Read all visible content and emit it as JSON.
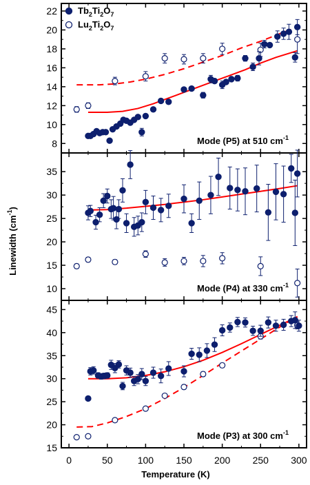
{
  "chart_data": {
    "type": "scatter",
    "x_label": "Temperature (K)",
    "y_label": "Linewidth (cm",
    "y_label_sup": "-1",
    "y_label_end": ")",
    "xlim": [
      -10,
      310
    ],
    "x_ticks": [
      0,
      50,
      100,
      150,
      200,
      250,
      300
    ],
    "grid": false,
    "legend": {
      "placement": "top-left",
      "entries": [
        {
          "name": "Tb",
          "sub1": "2",
          "mid": "Ti",
          "sub2": "2",
          "end": "O",
          "sub3": "7",
          "marker": "filled-circle"
        },
        {
          "name": "Lu",
          "sub1": "2",
          "mid": "Ti",
          "sub2": "2",
          "end": "O",
          "sub3": "7",
          "marker": "open-circle"
        }
      ]
    },
    "colors": {
      "tb": "#0d1f6e",
      "lu": "#0d1f6e",
      "fit": "#ff0000"
    },
    "panels": [
      {
        "id": "p5",
        "annotation": "Mode (P5) at 510 cm",
        "annotation_sup": "-1",
        "ylim": [
          7,
          22.8
        ],
        "y_ticks": [
          8,
          10,
          12,
          14,
          16,
          18,
          20,
          22
        ],
        "tb": [
          [
            25,
            8.8
          ],
          [
            28,
            8.8
          ],
          [
            32,
            9.0
          ],
          [
            36,
            9.3
          ],
          [
            40,
            9.1
          ],
          [
            44,
            9.2
          ],
          [
            48,
            9.2
          ],
          [
            53,
            8.3
          ],
          [
            57,
            9.5
          ],
          [
            62,
            9.8
          ],
          [
            67,
            10.1
          ],
          [
            71,
            10.5
          ],
          [
            75,
            10.4
          ],
          [
            80,
            10.2
          ],
          [
            85,
            10.5
          ],
          [
            90,
            10.8
          ],
          [
            95,
            9.2
          ],
          [
            100,
            10.9
          ],
          [
            110,
            11.6
          ],
          [
            120,
            12.5
          ],
          [
            130,
            12.4
          ],
          [
            150,
            13.7
          ],
          [
            160,
            13.8
          ],
          [
            175,
            13.1
          ],
          [
            185,
            14.8
          ],
          [
            190,
            14.6
          ],
          [
            200,
            14.2
          ],
          [
            205,
            14.5
          ],
          [
            212,
            14.8
          ],
          [
            220,
            14.9
          ],
          [
            230,
            17.0
          ],
          [
            240,
            16.1
          ],
          [
            248,
            17.0
          ],
          [
            255,
            18.5
          ],
          [
            262,
            18.4
          ],
          [
            272,
            19.3
          ],
          [
            280,
            19.6
          ],
          [
            287,
            19.8
          ],
          [
            295,
            17.1
          ],
          [
            298,
            20.3
          ]
        ],
        "tb_err": [
          [
            0
          ],
          [
            0
          ],
          [
            0
          ],
          [
            0
          ],
          [
            0
          ],
          [
            0
          ],
          [
            0
          ],
          [
            0
          ],
          [
            0
          ],
          [
            0
          ],
          [
            0
          ],
          [
            0
          ],
          [
            0
          ],
          [
            0
          ],
          [
            0
          ],
          [
            0
          ],
          [
            0.4
          ],
          [
            0
          ],
          [
            0
          ],
          [
            0.2
          ],
          [
            0
          ],
          [
            0
          ],
          [
            0
          ],
          [
            0.3
          ],
          [
            0.4
          ],
          [
            0
          ],
          [
            0.4
          ],
          [
            0
          ],
          [
            0
          ],
          [
            0.3
          ],
          [
            0.3
          ],
          [
            0.4
          ],
          [
            0.7
          ],
          [
            0.4
          ],
          [
            0
          ],
          [
            0.6
          ],
          [
            0.6
          ],
          [
            0.8
          ],
          [
            0.5
          ],
          [
            0.8
          ]
        ],
        "lu": [
          [
            10,
            11.6
          ],
          [
            25,
            12.0
          ],
          [
            60,
            14.6
          ],
          [
            100,
            15.1
          ],
          [
            125,
            17.0
          ],
          [
            150,
            16.9
          ],
          [
            175,
            17.0
          ],
          [
            200,
            18.0
          ],
          [
            250,
            17.9
          ],
          [
            298,
            19.0
          ]
        ],
        "lu_err": [
          0.3,
          0.3,
          0.4,
          0.5,
          0.5,
          0.5,
          0.5,
          0.6,
          0.7,
          1.5
        ],
        "fit_solid": [
          [
            25,
            11.3
          ],
          [
            50,
            11.3
          ],
          [
            70,
            11.4
          ],
          [
            90,
            11.7
          ],
          [
            110,
            12.2
          ],
          [
            130,
            12.8
          ],
          [
            150,
            13.4
          ],
          [
            170,
            14.0
          ],
          [
            190,
            14.6
          ],
          [
            210,
            15.2
          ],
          [
            230,
            15.8
          ],
          [
            250,
            16.5
          ],
          [
            270,
            17.1
          ],
          [
            298,
            17.8
          ]
        ],
        "fit_dashed": [
          [
            10,
            14.2
          ],
          [
            40,
            14.2
          ],
          [
            60,
            14.3
          ],
          [
            80,
            14.5
          ],
          [
            100,
            14.8
          ],
          [
            125,
            15.3
          ],
          [
            150,
            15.9
          ],
          [
            175,
            16.6
          ],
          [
            200,
            17.3
          ],
          [
            225,
            18.1
          ],
          [
            250,
            18.8
          ],
          [
            275,
            19.6
          ],
          [
            298,
            20.3
          ]
        ]
      },
      {
        "id": "p4",
        "annotation": "Mode (P4) at 330 cm",
        "annotation_sup": "-1",
        "ylim": [
          7.5,
          39
        ],
        "y_ticks": [
          10,
          15,
          20,
          25,
          30,
          35
        ],
        "tb": [
          [
            25,
            26.2
          ],
          [
            28,
            26.6
          ],
          [
            35,
            24.2
          ],
          [
            40,
            25.8
          ],
          [
            45,
            28.8
          ],
          [
            50,
            29.8
          ],
          [
            55,
            27.0
          ],
          [
            58,
            27.2
          ],
          [
            62,
            24.8
          ],
          [
            65,
            27.0
          ],
          [
            70,
            31.0
          ],
          [
            75,
            24.0
          ],
          [
            80,
            36.5
          ],
          [
            85,
            23.2
          ],
          [
            90,
            23.5
          ],
          [
            95,
            24.2
          ],
          [
            100,
            28.5
          ],
          [
            110,
            27.3
          ],
          [
            120,
            26.8
          ],
          [
            130,
            27.7
          ],
          [
            150,
            29.2
          ],
          [
            160,
            24.0
          ],
          [
            170,
            28.8
          ],
          [
            185,
            30.0
          ],
          [
            195,
            33.9
          ],
          [
            210,
            31.5
          ],
          [
            220,
            31.1
          ],
          [
            230,
            30.8
          ],
          [
            245,
            31.4
          ],
          [
            260,
            26.3
          ],
          [
            270,
            30.7
          ],
          [
            280,
            30.2
          ],
          [
            290,
            35.7
          ],
          [
            295,
            26.2
          ],
          [
            298,
            34.6
          ]
        ],
        "tb_err": [
          1.5,
          1.2,
          1.5,
          1.5,
          1.5,
          1.5,
          2.0,
          2.5,
          2.0,
          2.0,
          2.5,
          2.0,
          3.0,
          2.0,
          2.0,
          2.0,
          2.5,
          2.5,
          2.5,
          2.5,
          3.0,
          2.0,
          4.0,
          4.0,
          4.0,
          4.5,
          4.5,
          5.0,
          5.0,
          6.0,
          6.0,
          6.0,
          3.0,
          7.0,
          5.0
        ],
        "lu": [
          [
            10,
            14.8
          ],
          [
            25,
            16.2
          ],
          [
            60,
            15.7
          ],
          [
            100,
            17.4
          ],
          [
            125,
            15.6
          ],
          [
            150,
            15.9
          ],
          [
            175,
            15.9
          ],
          [
            200,
            16.5
          ],
          [
            250,
            14.8
          ],
          [
            298,
            11.2
          ]
        ],
        "lu_err": [
          0.5,
          0.5,
          0.5,
          0.7,
          0.8,
          0.8,
          1.2,
          1.2,
          2.0,
          3.0
        ],
        "fit_solid": [
          [
            25,
            26.8
          ],
          [
            50,
            26.9
          ],
          [
            75,
            27.2
          ],
          [
            100,
            27.6
          ],
          [
            125,
            28.0
          ],
          [
            150,
            28.5
          ],
          [
            175,
            29.0
          ],
          [
            200,
            29.6
          ],
          [
            225,
            30.2
          ],
          [
            250,
            30.8
          ],
          [
            275,
            31.4
          ],
          [
            298,
            32.0
          ]
        ],
        "fit_dashed": []
      },
      {
        "id": "p3",
        "annotation": "Mode (P3) at 300 cm",
        "annotation_sup": "-1",
        "ylim": [
          15,
          47
        ],
        "y_ticks": [
          15,
          20,
          25,
          30,
          35,
          40,
          45
        ],
        "tb": [
          [
            25,
            25.7
          ],
          [
            28,
            31.6
          ],
          [
            32,
            31.8
          ],
          [
            38,
            30.7
          ],
          [
            42,
            30.5
          ],
          [
            46,
            30.6
          ],
          [
            50,
            30.7
          ],
          [
            55,
            33.0
          ],
          [
            60,
            32.3
          ],
          [
            65,
            33.1
          ],
          [
            70,
            28.4
          ],
          [
            75,
            31.8
          ],
          [
            80,
            31.3
          ],
          [
            85,
            29.5
          ],
          [
            90,
            29.9
          ],
          [
            95,
            31.0
          ],
          [
            100,
            29.5
          ],
          [
            110,
            31.3
          ],
          [
            120,
            30.6
          ],
          [
            130,
            32.2
          ],
          [
            150,
            31.6
          ],
          [
            160,
            35.4
          ],
          [
            170,
            35.2
          ],
          [
            180,
            36.1
          ],
          [
            190,
            37.4
          ],
          [
            200,
            40.5
          ],
          [
            210,
            41.1
          ],
          [
            220,
            42.3
          ],
          [
            230,
            42.2
          ],
          [
            240,
            40.4
          ],
          [
            250,
            40.4
          ],
          [
            260,
            42.2
          ],
          [
            270,
            41.5
          ],
          [
            280,
            41.7
          ],
          [
            290,
            42.5
          ],
          [
            295,
            42.7
          ],
          [
            300,
            41.5
          ]
        ],
        "tb_err": [
          0.4,
          0.8,
          0.8,
          0.6,
          0.6,
          0.6,
          0.6,
          1.0,
          1.0,
          0.8,
          0.8,
          1.0,
          1.0,
          1.0,
          1.0,
          1.2,
          1.0,
          1.2,
          1.5,
          1.5,
          1.2,
          1.2,
          1.5,
          1.5,
          1.5,
          1.2,
          1.0,
          1.0,
          1.0,
          1.0,
          1.2,
          1.2,
          1.2,
          1.2,
          1.2,
          1.8,
          1.2
        ],
        "lu": [
          [
            10,
            17.3
          ],
          [
            25,
            17.5
          ],
          [
            60,
            21.0
          ],
          [
            100,
            23.5
          ],
          [
            125,
            26.3
          ],
          [
            150,
            28.2
          ],
          [
            175,
            31.0
          ],
          [
            200,
            32.9
          ],
          [
            250,
            39.2
          ],
          [
            298,
            41.6
          ]
        ],
        "lu_err": [
          0.3,
          0.3,
          0.4,
          0.4,
          0.4,
          0.5,
          0.5,
          0.5,
          0.6,
          0.8
        ],
        "fit_solid": [
          [
            25,
            30.0
          ],
          [
            50,
            30.0
          ],
          [
            75,
            30.2
          ],
          [
            100,
            30.7
          ],
          [
            125,
            31.5
          ],
          [
            150,
            32.6
          ],
          [
            175,
            34.0
          ],
          [
            200,
            35.7
          ],
          [
            225,
            37.6
          ],
          [
            250,
            39.6
          ],
          [
            275,
            41.6
          ],
          [
            298,
            43.4
          ]
        ],
        "fit_dashed": [
          [
            10,
            19.5
          ],
          [
            30,
            19.6
          ],
          [
            50,
            20.4
          ],
          [
            75,
            21.8
          ],
          [
            100,
            23.5
          ],
          [
            125,
            25.7
          ],
          [
            150,
            28.1
          ],
          [
            175,
            30.7
          ],
          [
            200,
            33.4
          ],
          [
            225,
            36.0
          ],
          [
            250,
            38.6
          ],
          [
            275,
            41.2
          ],
          [
            298,
            43.5
          ]
        ]
      }
    ]
  }
}
